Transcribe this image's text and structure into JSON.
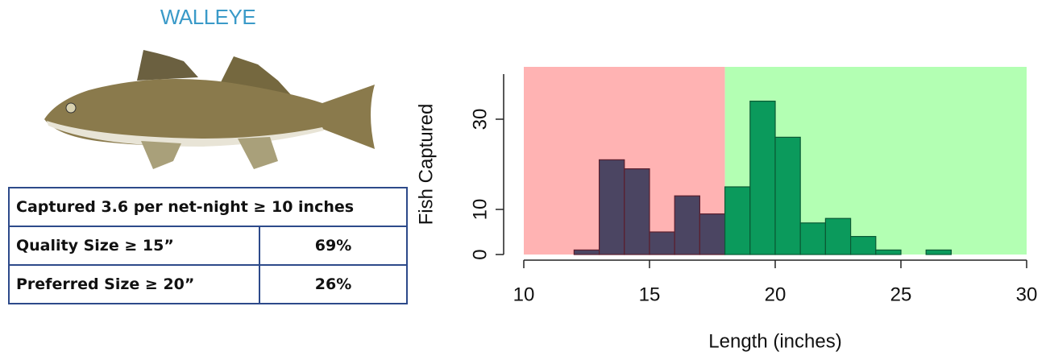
{
  "title": "WALLEYE",
  "table": {
    "rows": [
      [
        "Captured 3.6 per net-night ≥ 10 inches"
      ],
      [
        "Quality Size ≥  15”",
        "69%"
      ],
      [
        "Preferred Size ≥  20”",
        "26%"
      ]
    ]
  },
  "chart_data": {
    "type": "histogram",
    "x_label": "Length (inches)",
    "y_label": "Fish Captured",
    "bins": [
      12,
      13,
      14,
      15,
      16,
      17,
      18,
      19,
      20,
      21,
      22,
      23,
      24,
      25,
      26,
      27
    ],
    "counts": [
      1,
      21,
      19,
      5,
      13,
      9,
      15,
      34,
      26,
      7,
      8,
      4,
      1,
      0,
      1
    ],
    "regions": [
      {
        "from": 10,
        "to": 18,
        "color": "#ffb3b3",
        "bar_color": "#4b4562",
        "edge_color": "#5a1f2e"
      },
      {
        "from": 18,
        "to": 30,
        "color": "#b3ffb3",
        "bar_color": "#0b9a5c",
        "edge_color": "#0b5a34"
      }
    ],
    "xlim": [
      10,
      30
    ],
    "xticks": [
      10,
      15,
      20,
      25,
      30
    ],
    "ylim": [
      0,
      40
    ],
    "yticks": [
      0,
      10,
      30
    ]
  }
}
